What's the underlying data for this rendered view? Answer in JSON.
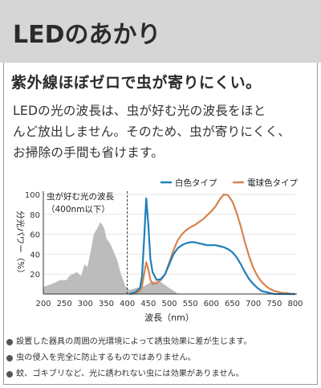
{
  "header": {
    "title": "LEDのあかり"
  },
  "subheading": "紫外線ほぼゼロで虫が寄りにくい。",
  "body_lines": [
    "LEDの光の波長は、虫が好む光の波長をほと",
    "んど放出しません。そのため、虫が寄りにくく、",
    "お掃除の手間も省けます。"
  ],
  "chart_data": {
    "type": "area",
    "ylabel": "分光パワー（%）",
    "xlabel": "波長（nm）",
    "xlim": [
      200,
      800
    ],
    "ylim": [
      0,
      100
    ],
    "x_ticks": [
      "200",
      "250",
      "300",
      "350",
      "400",
      "450",
      "500",
      "550",
      "600",
      "650",
      "700",
      "750",
      "800"
    ],
    "y_ticks": [
      "20",
      "40",
      "60",
      "80",
      "100"
    ],
    "annotation": {
      "line1": "虫が好む光の波長",
      "line2": "（400nm以下）",
      "divider_x": 400
    },
    "legend": {
      "position": "top-right"
    },
    "series": [
      {
        "name": "白色タイプ",
        "color": "#1f7fba",
        "x": [
          405,
          420,
          430,
          435,
          440,
          445,
          450,
          455,
          460,
          470,
          480,
          490,
          500,
          510,
          520,
          530,
          540,
          550,
          560,
          570,
          580,
          590,
          600,
          610,
          620,
          630,
          640,
          650,
          660,
          670,
          680,
          690,
          700,
          710,
          720,
          730,
          740,
          750,
          760,
          770,
          780,
          790,
          800
        ],
        "y": [
          0,
          2,
          6,
          18,
          55,
          96,
          70,
          35,
          22,
          14,
          15,
          20,
          30,
          40,
          46,
          49,
          51,
          52,
          52,
          51,
          50,
          49,
          49,
          49,
          48,
          47,
          45,
          42,
          37,
          30,
          22,
          15,
          10,
          6,
          3,
          2,
          1,
          0,
          0,
          0,
          0,
          0,
          0
        ]
      },
      {
        "name": "電球色タイプ",
        "color": "#d7834e",
        "x": [
          405,
          420,
          430,
          435,
          440,
          445,
          450,
          455,
          460,
          470,
          480,
          490,
          500,
          510,
          520,
          530,
          540,
          550,
          560,
          570,
          580,
          590,
          600,
          610,
          620,
          630,
          640,
          650,
          660,
          670,
          680,
          690,
          700,
          710,
          720,
          730,
          740,
          750,
          760,
          770,
          780,
          790,
          800
        ],
        "y": [
          0,
          1,
          3,
          8,
          20,
          32,
          25,
          14,
          10,
          11,
          14,
          20,
          32,
          44,
          54,
          60,
          64,
          67,
          69,
          72,
          75,
          79,
          83,
          88,
          95,
          100,
          99,
          93,
          82,
          68,
          52,
          38,
          26,
          18,
          12,
          8,
          5,
          3,
          2,
          1,
          1,
          0,
          0
        ]
      },
      {
        "name": "",
        "color": "#bcbcbc",
        "x": [
          200,
          220,
          240,
          255,
          260,
          265,
          270,
          280,
          290,
          298,
          305,
          312,
          320,
          330,
          335,
          340,
          345,
          350,
          360,
          375,
          385,
          395,
          405,
          420,
          440,
          460,
          480,
          500,
          515,
          520
        ],
        "y": [
          7,
          10,
          14,
          14,
          17,
          19,
          20,
          22,
          18,
          30,
          27,
          41,
          60,
          67,
          72,
          70,
          66,
          56,
          50,
          35,
          20,
          8,
          4,
          6,
          8,
          13,
          12,
          6,
          2,
          0
        ]
      }
    ]
  },
  "notes": [
    "設置した器具の周囲の光環境によって誘虫効果に差が生じます。",
    "虫の侵入を完全に防止するものではありません。",
    "蚊、ゴキブリなど、光に誘われない虫には効果がありません。"
  ]
}
